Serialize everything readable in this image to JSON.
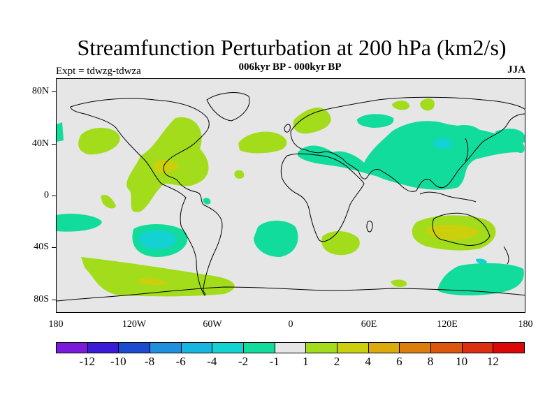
{
  "title": "Streamfunction Perturbation at 200 hPa (km2/s)",
  "subtitle": "006kyr BP - 000kyr BP",
  "experiment": "Expt = tdwzg-tdwza",
  "season": "JJA",
  "map": {
    "land_color": "#e6e6e6",
    "lat_labels": [
      "80N",
      "40N",
      "0",
      "40S",
      "80S"
    ],
    "lon_labels": [
      "180",
      "120W",
      "60W",
      "0",
      "60E",
      "120E",
      "180"
    ]
  },
  "legend": {
    "colors": [
      "#7a1bdc",
      "#3b1bd8",
      "#1c4bd2",
      "#1f8fe0",
      "#16b6e0",
      "#14d2d2",
      "#12dc9c",
      "#e6e6e6",
      "#a2dc1a",
      "#ccd00c",
      "#dcaa0a",
      "#dc7e0c",
      "#dc560e",
      "#dc2e10",
      "#dc0808"
    ],
    "labels": [
      "-12",
      "-10",
      "-8",
      "-6",
      "-4",
      "-2",
      "-1",
      "1",
      "2",
      "4",
      "6",
      "8",
      "10",
      "12"
    ]
  }
}
